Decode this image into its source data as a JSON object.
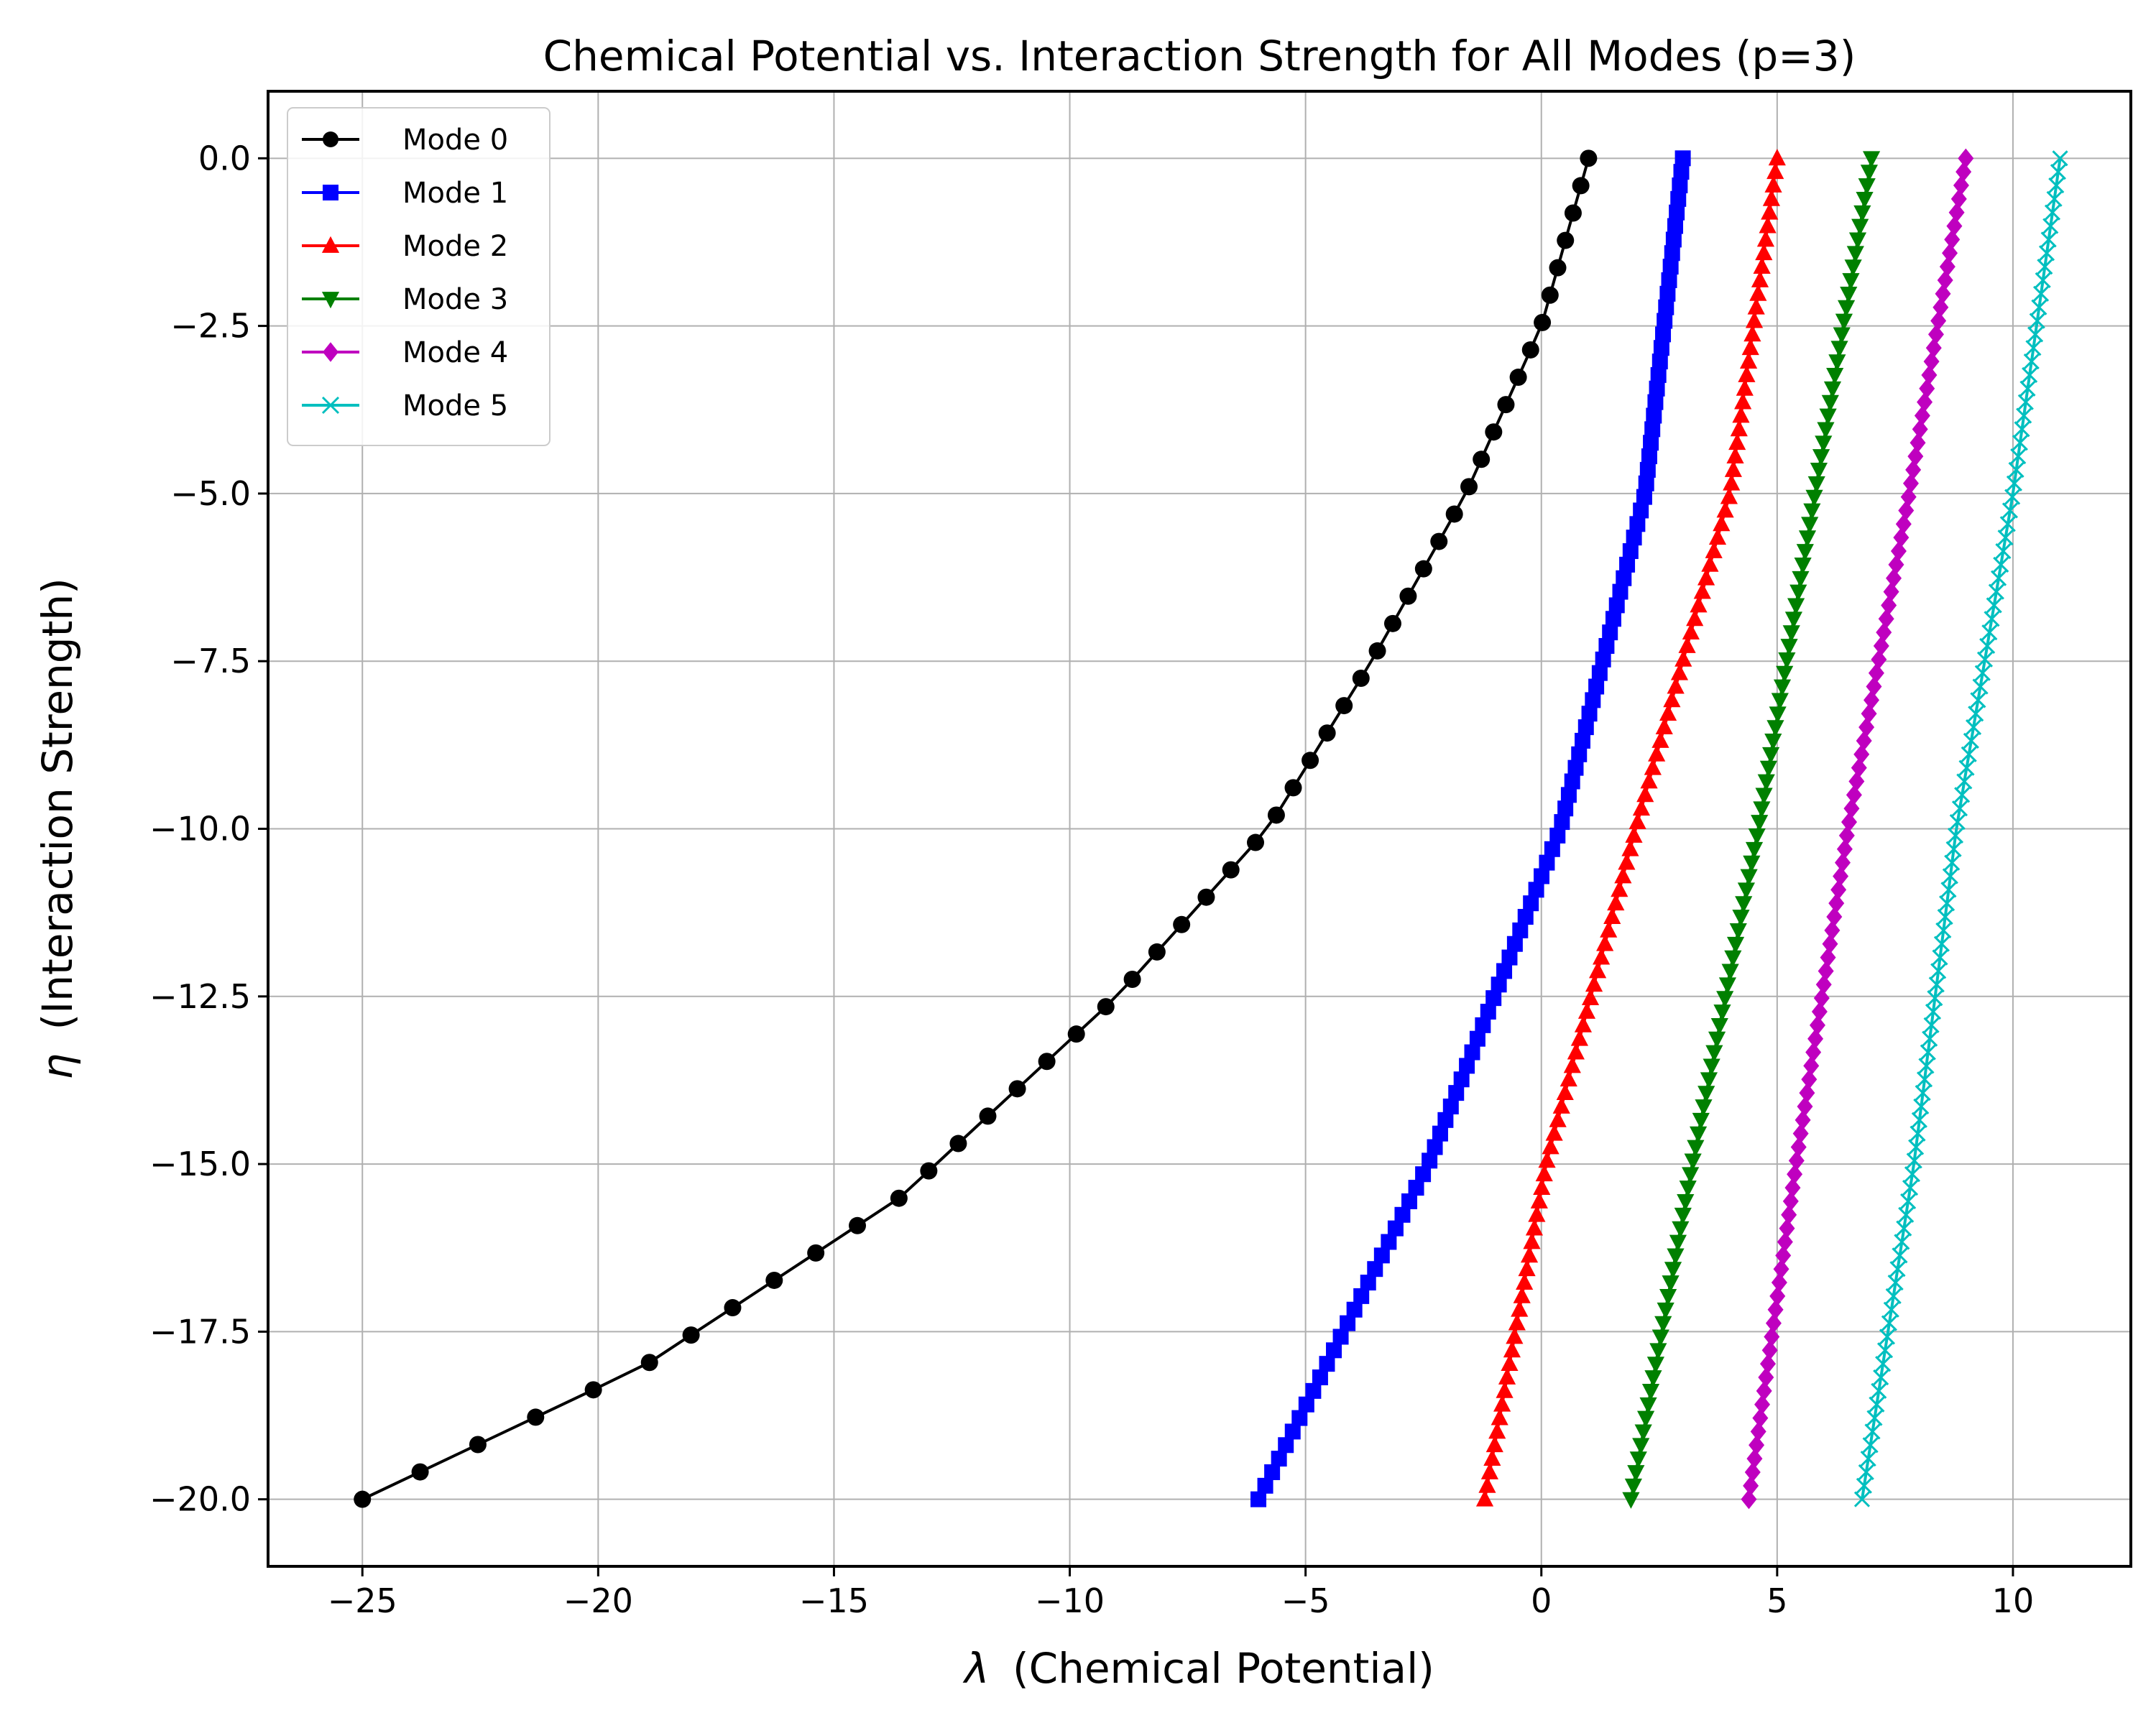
{
  "chart_data": {
    "type": "line",
    "title": "Chemical Potential vs. Interaction Strength for All Modes (p=3)",
    "xlabel_symbol": "λ",
    "xlabel_text": "(Chemical Potential)",
    "ylabel_symbol": "η",
    "ylabel_text": "(Interaction Strength)",
    "xlim": [
      -27,
      12.5
    ],
    "ylim": [
      -21,
      1
    ],
    "xticks": [
      -25,
      -20,
      -15,
      -10,
      -5,
      0,
      5,
      10
    ],
    "xtick_labels": [
      "−25",
      "−20",
      "−15",
      "−10",
      "−5",
      "0",
      "5",
      "10"
    ],
    "yticks": [
      0,
      -2.5,
      -5,
      -7.5,
      -10,
      -12.5,
      -15,
      -17.5,
      -20
    ],
    "ytick_labels": [
      "0.0",
      "−2.5",
      "−5.0",
      "−7.5",
      "−10.0",
      "−12.5",
      "−15.0",
      "−17.5",
      "−20.0"
    ],
    "grid": true,
    "legend_position": "upper-left",
    "points_per_series": 100,
    "series": [
      {
        "name": "Mode 0",
        "color": "#000000",
        "marker": "circle",
        "points": [
          [
            1.0,
            0
          ],
          [
            0.0,
            -2.5
          ],
          [
            -1.6,
            -5.0
          ],
          [
            -3.6,
            -7.5
          ],
          [
            -5.8,
            -10.0
          ],
          [
            -9.0,
            -12.5
          ],
          [
            -13.6,
            -15.5
          ],
          [
            -19.0,
            -18.0
          ],
          [
            -25.0,
            -20.0
          ]
        ]
      },
      {
        "name": "Mode 1",
        "color": "#0000ff",
        "marker": "square",
        "points": [
          [
            3.0,
            0
          ],
          [
            2.2,
            -5.0
          ],
          [
            0.4,
            -10.0
          ],
          [
            -2.4,
            -15.0
          ],
          [
            -6.0,
            -20.0
          ]
        ]
      },
      {
        "name": "Mode 2",
        "color": "#ff0000",
        "marker": "triangle-up",
        "points": [
          [
            5.0,
            0
          ],
          [
            4.0,
            -5.0
          ],
          [
            2.0,
            -10.0
          ],
          [
            0.1,
            -15.0
          ],
          [
            -1.2,
            -20.0
          ]
        ]
      },
      {
        "name": "Mode 3",
        "color": "#008000",
        "marker": "triangle-down",
        "points": [
          [
            7.0,
            0
          ],
          [
            5.8,
            -5.0
          ],
          [
            4.6,
            -10.0
          ],
          [
            3.2,
            -15.0
          ],
          [
            1.9,
            -20.0
          ]
        ]
      },
      {
        "name": "Mode 4",
        "color": "#bf00bf",
        "marker": "diamond",
        "points": [
          [
            9.0,
            0
          ],
          [
            7.8,
            -5.0
          ],
          [
            6.5,
            -10.0
          ],
          [
            5.4,
            -15.0
          ],
          [
            4.4,
            -20.0
          ]
        ]
      },
      {
        "name": "Mode 5",
        "color": "#00bfbf",
        "marker": "x",
        "points": [
          [
            11.0,
            0
          ],
          [
            10.0,
            -5.0
          ],
          [
            8.8,
            -10.0
          ],
          [
            7.9,
            -15.0
          ],
          [
            6.8,
            -20.0
          ]
        ]
      }
    ]
  }
}
